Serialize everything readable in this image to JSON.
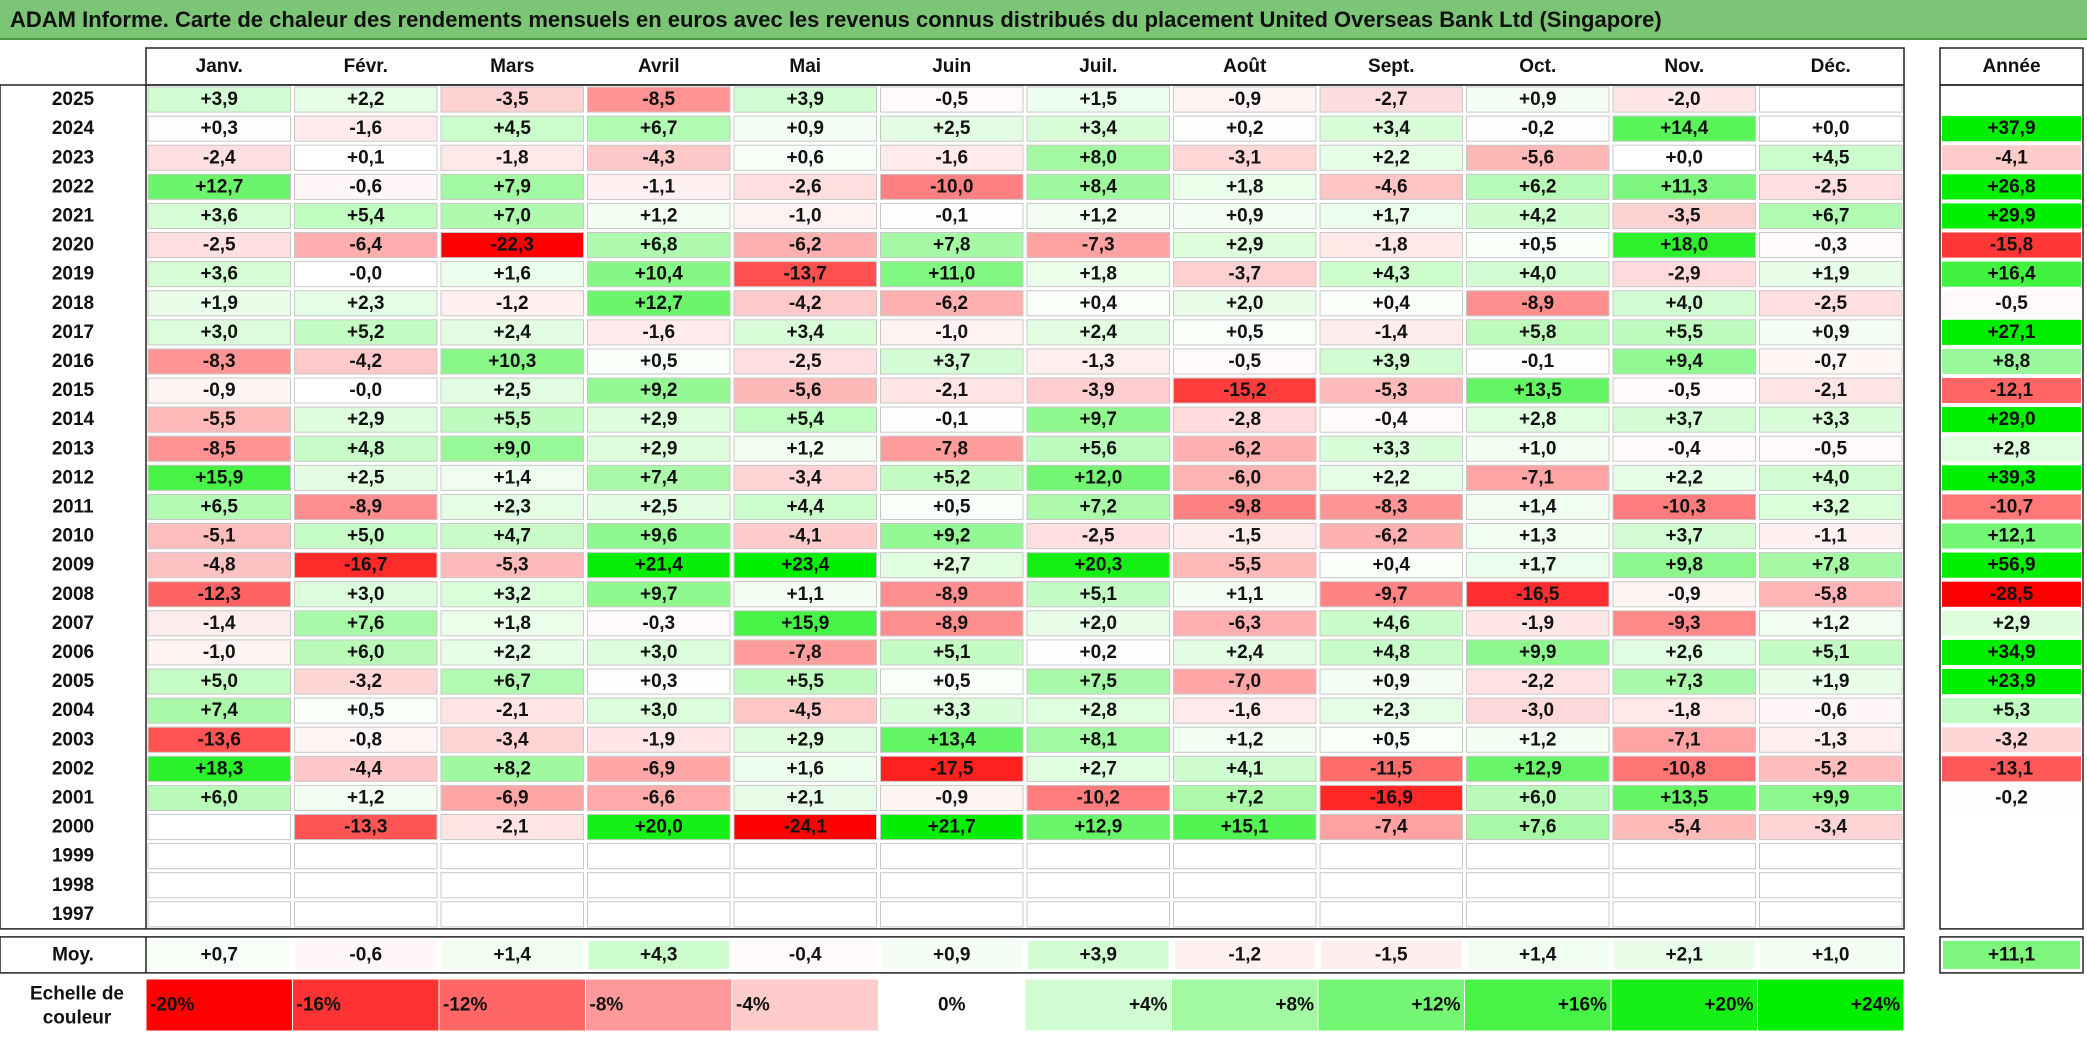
{
  "title": "ADAM Informe. Carte de chaleur des rendements mensuels en euros avec les revenus connus distribués du placement United Overseas Bank Ltd (Singapore)",
  "chart_data": {
    "type": "heatmap",
    "columns": [
      "Janv.",
      "Févr.",
      "Mars",
      "Avril",
      "Mai",
      "Juin",
      "Juil.",
      "Août",
      "Sept.",
      "Oct.",
      "Nov.",
      "Déc."
    ],
    "year_column": "Année",
    "average_label": "Moy.",
    "rows": [
      {
        "year": "2025",
        "months": [
          "+3,9",
          "+2,2",
          "-3,5",
          "-8,5",
          "+3,9",
          "-0,5",
          "+1,5",
          "-0,9",
          "-2,7",
          "+0,9",
          "-2,0",
          ""
        ],
        "annual": ""
      },
      {
        "year": "2024",
        "months": [
          "+0,3",
          "-1,6",
          "+4,5",
          "+6,7",
          "+0,9",
          "+2,5",
          "+3,4",
          "+0,2",
          "+3,4",
          "-0,2",
          "+14,4",
          "+0,0"
        ],
        "annual": "+37,9"
      },
      {
        "year": "2023",
        "months": [
          "-2,4",
          "+0,1",
          "-1,8",
          "-4,3",
          "+0,6",
          "-1,6",
          "+8,0",
          "-3,1",
          "+2,2",
          "-5,6",
          "+0,0",
          "+4,5"
        ],
        "annual": "-4,1"
      },
      {
        "year": "2022",
        "months": [
          "+12,7",
          "-0,6",
          "+7,9",
          "-1,1",
          "-2,6",
          "-10,0",
          "+8,4",
          "+1,8",
          "-4,6",
          "+6,2",
          "+11,3",
          "-2,5"
        ],
        "annual": "+26,8"
      },
      {
        "year": "2021",
        "months": [
          "+3,6",
          "+5,4",
          "+7,0",
          "+1,2",
          "-1,0",
          "-0,1",
          "+1,2",
          "+0,9",
          "+1,7",
          "+4,2",
          "-3,5",
          "+6,7"
        ],
        "annual": "+29,9"
      },
      {
        "year": "2020",
        "months": [
          "-2,5",
          "-6,4",
          "-22,3",
          "+6,8",
          "-6,2",
          "+7,8",
          "-7,3",
          "+2,9",
          "-1,8",
          "+0,5",
          "+18,0",
          "-0,3"
        ],
        "annual": "-15,8"
      },
      {
        "year": "2019",
        "months": [
          "+3,6",
          "-0,0",
          "+1,6",
          "+10,4",
          "-13,7",
          "+11,0",
          "+1,8",
          "-3,7",
          "+4,3",
          "+4,0",
          "-2,9",
          "+1,9"
        ],
        "annual": "+16,4"
      },
      {
        "year": "2018",
        "months": [
          "+1,9",
          "+2,3",
          "-1,2",
          "+12,7",
          "-4,2",
          "-6,2",
          "+0,4",
          "+2,0",
          "+0,4",
          "-8,9",
          "+4,0",
          "-2,5"
        ],
        "annual": "-0,5"
      },
      {
        "year": "2017",
        "months": [
          "+3,0",
          "+5,2",
          "+2,4",
          "-1,6",
          "+3,4",
          "-1,0",
          "+2,4",
          "+0,5",
          "-1,4",
          "+5,8",
          "+5,5",
          "+0,9"
        ],
        "annual": "+27,1"
      },
      {
        "year": "2016",
        "months": [
          "-8,3",
          "-4,2",
          "+10,3",
          "+0,5",
          "-2,5",
          "+3,7",
          "-1,3",
          "-0,5",
          "+3,9",
          "-0,1",
          "+9,4",
          "-0,7"
        ],
        "annual": "+8,8"
      },
      {
        "year": "2015",
        "months": [
          "-0,9",
          "-0,0",
          "+2,5",
          "+9,2",
          "-5,6",
          "-2,1",
          "-3,9",
          "-15,2",
          "-5,3",
          "+13,5",
          "-0,5",
          "-2,1"
        ],
        "annual": "-12,1"
      },
      {
        "year": "2014",
        "months": [
          "-5,5",
          "+2,9",
          "+5,5",
          "+2,9",
          "+5,4",
          "-0,1",
          "+9,7",
          "-2,8",
          "-0,4",
          "+2,8",
          "+3,7",
          "+3,3"
        ],
        "annual": "+29,0"
      },
      {
        "year": "2013",
        "months": [
          "-8,5",
          "+4,8",
          "+9,0",
          "+2,9",
          "+1,2",
          "-7,8",
          "+5,6",
          "-6,2",
          "+3,3",
          "+1,0",
          "-0,4",
          "-0,5"
        ],
        "annual": "+2,8"
      },
      {
        "year": "2012",
        "months": [
          "+15,9",
          "+2,5",
          "+1,4",
          "+7,4",
          "-3,4",
          "+5,2",
          "+12,0",
          "-6,0",
          "+2,2",
          "-7,1",
          "+2,2",
          "+4,0"
        ],
        "annual": "+39,3"
      },
      {
        "year": "2011",
        "months": [
          "+6,5",
          "-8,9",
          "+2,3",
          "+2,5",
          "+4,4",
          "+0,5",
          "+7,2",
          "-9,8",
          "-8,3",
          "+1,4",
          "-10,3",
          "+3,2"
        ],
        "annual": "-10,7"
      },
      {
        "year": "2010",
        "months": [
          "-5,1",
          "+5,0",
          "+4,7",
          "+9,6",
          "-4,1",
          "+9,2",
          "-2,5",
          "-1,5",
          "-6,2",
          "+1,3",
          "+3,7",
          "-1,1"
        ],
        "annual": "+12,1"
      },
      {
        "year": "2009",
        "months": [
          "-4,8",
          "-16,7",
          "-5,3",
          "+21,4",
          "+23,4",
          "+2,7",
          "+20,3",
          "-5,5",
          "+0,4",
          "+1,7",
          "+9,8",
          "+7,8"
        ],
        "annual": "+56,9"
      },
      {
        "year": "2008",
        "months": [
          "-12,3",
          "+3,0",
          "+3,2",
          "+9,7",
          "+1,1",
          "-8,9",
          "+5,1",
          "+1,1",
          "-9,7",
          "-16,5",
          "-0,9",
          "-5,8"
        ],
        "annual": "-28,5"
      },
      {
        "year": "2007",
        "months": [
          "-1,4",
          "+7,6",
          "+1,8",
          "-0,3",
          "+15,9",
          "-8,9",
          "+2,0",
          "-6,3",
          "+4,6",
          "-1,9",
          "-9,3",
          "+1,2"
        ],
        "annual": "+2,9"
      },
      {
        "year": "2006",
        "months": [
          "-1,0",
          "+6,0",
          "+2,2",
          "+3,0",
          "-7,8",
          "+5,1",
          "+0,2",
          "+2,4",
          "+4,8",
          "+9,9",
          "+2,6",
          "+5,1"
        ],
        "annual": "+34,9"
      },
      {
        "year": "2005",
        "months": [
          "+5,0",
          "-3,2",
          "+6,7",
          "+0,3",
          "+5,5",
          "+0,5",
          "+7,5",
          "-7,0",
          "+0,9",
          "-2,2",
          "+7,3",
          "+1,9"
        ],
        "annual": "+23,9"
      },
      {
        "year": "2004",
        "months": [
          "+7,4",
          "+0,5",
          "-2,1",
          "+3,0",
          "-4,5",
          "+3,3",
          "+2,8",
          "-1,6",
          "+2,3",
          "-3,0",
          "-1,8",
          "-0,6"
        ],
        "annual": "+5,3"
      },
      {
        "year": "2003",
        "months": [
          "-13,6",
          "-0,8",
          "-3,4",
          "-1,9",
          "+2,9",
          "+13,4",
          "+8,1",
          "+1,2",
          "+0,5",
          "+1,2",
          "-7,1",
          "-1,3"
        ],
        "annual": "-3,2"
      },
      {
        "year": "2002",
        "months": [
          "+18,3",
          "-4,4",
          "+8,2",
          "-6,9",
          "+1,6",
          "-17,5",
          "+2,7",
          "+4,1",
          "-11,5",
          "+12,9",
          "-10,8",
          "-5,2"
        ],
        "annual": "-13,1"
      },
      {
        "year": "2001",
        "months": [
          "+6,0",
          "+1,2",
          "-6,9",
          "-6,6",
          "+2,1",
          "-0,9",
          "-10,2",
          "+7,2",
          "-16,9",
          "+6,0",
          "+13,5",
          "+9,9"
        ],
        "annual": "-0,2"
      },
      {
        "year": "2000",
        "months": [
          "",
          "-13,3",
          "-2,1",
          "+20,0",
          "-24,1",
          "+21,7",
          "+12,9",
          "+15,1",
          "-7,4",
          "+7,6",
          "-5,4",
          "-3,4"
        ],
        "annual": ""
      },
      {
        "year": "1999",
        "months": [
          "",
          "",
          "",
          "",
          "",
          "",
          "",
          "",
          "",
          "",
          "",
          ""
        ],
        "annual": ""
      },
      {
        "year": "1998",
        "months": [
          "",
          "",
          "",
          "",
          "",
          "",
          "",
          "",
          "",
          "",
          "",
          ""
        ],
        "annual": ""
      },
      {
        "year": "1997",
        "months": [
          "",
          "",
          "",
          "",
          "",
          "",
          "",
          "",
          "",
          "",
          "",
          ""
        ],
        "annual": ""
      }
    ],
    "averages": {
      "months": [
        "+0,7",
        "-0,6",
        "+1,4",
        "+4,3",
        "-0,4",
        "+0,9",
        "+3,9",
        "-1,2",
        "-1,5",
        "+1,4",
        "+2,1",
        "+1,0"
      ],
      "annual": "+11,1"
    },
    "scale": {
      "label_line1": "Echelle de",
      "label_line2": "couleur",
      "steps": [
        {
          "label": "-20%",
          "value": -20
        },
        {
          "label": "-16%",
          "value": -16
        },
        {
          "label": "-12%",
          "value": -12
        },
        {
          "label": "-8%",
          "value": -8
        },
        {
          "label": "-4%",
          "value": -4
        },
        {
          "label": "0%",
          "value": 0
        },
        {
          "label": "+4%",
          "value": 4
        },
        {
          "label": "+8%",
          "value": 8
        },
        {
          "label": "+12%",
          "value": 12
        },
        {
          "label": "+16%",
          "value": 16
        },
        {
          "label": "+20%",
          "value": 20
        },
        {
          "label": "+24%",
          "value": 24
        }
      ]
    },
    "colors": {
      "negative_max": "#ff0000",
      "neutral": "#ffffff",
      "positive_max": "#00ee00",
      "grid": "#b0b0b0",
      "title_bg": "#7cc576"
    }
  }
}
